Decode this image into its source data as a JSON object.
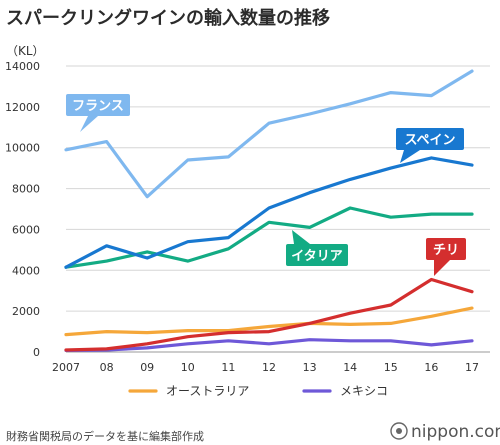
{
  "chart_data": {
    "type": "line",
    "title": "スパークリングワインの輸入数量の推移",
    "ylabel": "（KL）",
    "ylim": [
      0,
      14000
    ],
    "yticks": [
      0,
      2000,
      4000,
      6000,
      8000,
      10000,
      12000,
      14000
    ],
    "x": [
      "2007",
      "08",
      "09",
      "10",
      "11",
      "12",
      "13",
      "14",
      "15",
      "16",
      "17"
    ],
    "grid": true,
    "series": [
      {
        "name": "フランス",
        "color": "#7fb8ef",
        "values": [
          9900,
          10300,
          7600,
          9400,
          9550,
          11200,
          11650,
          12150,
          12700,
          12550,
          13750
        ]
      },
      {
        "name": "スペイン",
        "color": "#1878d0",
        "values": [
          4150,
          5200,
          4600,
          5400,
          5600,
          7050,
          7800,
          8450,
          9000,
          9500,
          9150
        ]
      },
      {
        "name": "イタリア",
        "color": "#13ab84",
        "values": [
          4150,
          4450,
          4900,
          4450,
          5050,
          6350,
          6100,
          7050,
          6600,
          6750,
          6750
        ]
      },
      {
        "name": "チリ",
        "color": "#d42e2e",
        "values": [
          100,
          150,
          400,
          750,
          950,
          1000,
          1400,
          1900,
          2300,
          3550,
          2950
        ]
      },
      {
        "name": "オーストラリア",
        "color": "#f5a73a",
        "values": [
          850,
          1000,
          950,
          1050,
          1050,
          1250,
          1400,
          1350,
          1400,
          1750,
          2150
        ]
      },
      {
        "name": "メキシコ",
        "color": "#6e58d8",
        "values": [
          80,
          100,
          200,
          400,
          550,
          400,
          600,
          550,
          550,
          350,
          550
        ]
      }
    ],
    "callouts": [
      "フランス",
      "スペイン",
      "イタリア",
      "チリ"
    ],
    "legend_series": [
      "オーストラリア",
      "メキシコ"
    ],
    "legend": "bottom"
  },
  "footer": {
    "source": "財務省関税局のデータを基に編集部作成",
    "brand": "nippon.com"
  }
}
